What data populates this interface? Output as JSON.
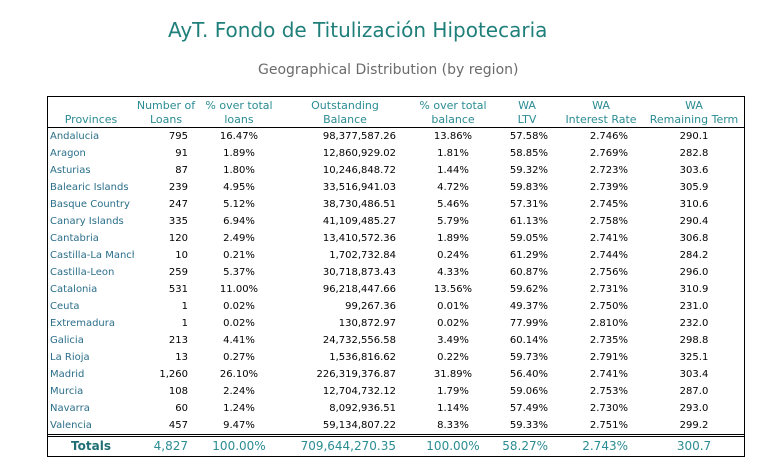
{
  "title": "AyT. Fondo de Titulización Hipotecaria",
  "subtitle": "Geographical Distribution (by region)",
  "headers": {
    "provinces": "Provinces",
    "loans": [
      "Number of",
      "Loans"
    ],
    "pct_loans": [
      "% over total",
      "loans"
    ],
    "balance": [
      "Outstanding",
      "Balance"
    ],
    "pct_balance": [
      "% over total",
      "balance"
    ],
    "ltv": [
      "WA",
      "LTV"
    ],
    "rate": [
      "WA",
      "Interest Rate"
    ],
    "term": [
      "WA",
      "Remaining Term"
    ]
  },
  "rows": [
    {
      "name": "Andalucia",
      "loans": "795",
      "pct_loans": "16.47%",
      "balance": "98,377,587.26",
      "pct_balance": "13.86%",
      "ltv": "57.58%",
      "rate": "2.746%",
      "term": "290.1"
    },
    {
      "name": "Aragon",
      "loans": "91",
      "pct_loans": "1.89%",
      "balance": "12,860,929.02",
      "pct_balance": "1.81%",
      "ltv": "58.85%",
      "rate": "2.769%",
      "term": "282.8"
    },
    {
      "name": "Asturias",
      "loans": "87",
      "pct_loans": "1.80%",
      "balance": "10,246,848.72",
      "pct_balance": "1.44%",
      "ltv": "59.32%",
      "rate": "2.723%",
      "term": "303.6"
    },
    {
      "name": "Balearic Islands",
      "loans": "239",
      "pct_loans": "4.95%",
      "balance": "33,516,941.03",
      "pct_balance": "4.72%",
      "ltv": "59.83%",
      "rate": "2.739%",
      "term": "305.9"
    },
    {
      "name": "Basque Country",
      "loans": "247",
      "pct_loans": "5.12%",
      "balance": "38,730,486.51",
      "pct_balance": "5.46%",
      "ltv": "57.31%",
      "rate": "2.745%",
      "term": "310.6"
    },
    {
      "name": "Canary Islands",
      "loans": "335",
      "pct_loans": "6.94%",
      "balance": "41,109,485.27",
      "pct_balance": "5.79%",
      "ltv": "61.13%",
      "rate": "2.758%",
      "term": "290.4"
    },
    {
      "name": "Cantabria",
      "loans": "120",
      "pct_loans": "2.49%",
      "balance": "13,410,572.36",
      "pct_balance": "1.89%",
      "ltv": "59.05%",
      "rate": "2.741%",
      "term": "306.8"
    },
    {
      "name": "Castilla-La Manch",
      "loans": "10",
      "pct_loans": "0.21%",
      "balance": "1,702,732.84",
      "pct_balance": "0.24%",
      "ltv": "61.29%",
      "rate": "2.744%",
      "term": "284.2"
    },
    {
      "name": "Castilla-Leon",
      "loans": "259",
      "pct_loans": "5.37%",
      "balance": "30,718,873.43",
      "pct_balance": "4.33%",
      "ltv": "60.87%",
      "rate": "2.756%",
      "term": "296.0"
    },
    {
      "name": "Catalonia",
      "loans": "531",
      "pct_loans": "11.00%",
      "balance": "96,218,447.66",
      "pct_balance": "13.56%",
      "ltv": "59.62%",
      "rate": "2.731%",
      "term": "310.9"
    },
    {
      "name": "Ceuta",
      "loans": "1",
      "pct_loans": "0.02%",
      "balance": "99,267.36",
      "pct_balance": "0.01%",
      "ltv": "49.37%",
      "rate": "2.750%",
      "term": "231.0"
    },
    {
      "name": "Extremadura",
      "loans": "1",
      "pct_loans": "0.02%",
      "balance": "130,872.97",
      "pct_balance": "0.02%",
      "ltv": "77.99%",
      "rate": "2.810%",
      "term": "232.0"
    },
    {
      "name": "Galicia",
      "loans": "213",
      "pct_loans": "4.41%",
      "balance": "24,732,556.58",
      "pct_balance": "3.49%",
      "ltv": "60.14%",
      "rate": "2.735%",
      "term": "298.8"
    },
    {
      "name": "La Rioja",
      "loans": "13",
      "pct_loans": "0.27%",
      "balance": "1,536,816.62",
      "pct_balance": "0.22%",
      "ltv": "59.73%",
      "rate": "2.791%",
      "term": "325.1"
    },
    {
      "name": "Madrid",
      "loans": "1,260",
      "pct_loans": "26.10%",
      "balance": "226,319,376.87",
      "pct_balance": "31.89%",
      "ltv": "56.40%",
      "rate": "2.741%",
      "term": "303.4"
    },
    {
      "name": "Murcia",
      "loans": "108",
      "pct_loans": "2.24%",
      "balance": "12,704,732.12",
      "pct_balance": "1.79%",
      "ltv": "59.06%",
      "rate": "2.753%",
      "term": "287.0"
    },
    {
      "name": "Navarra",
      "loans": "60",
      "pct_loans": "1.24%",
      "balance": "8,092,936.51",
      "pct_balance": "1.14%",
      "ltv": "57.49%",
      "rate": "2.730%",
      "term": "293.0"
    },
    {
      "name": "Valencia",
      "loans": "457",
      "pct_loans": "9.47%",
      "balance": "59,134,807.22",
      "pct_balance": "8.33%",
      "ltv": "59.33%",
      "rate": "2.751%",
      "term": "299.2"
    }
  ],
  "totals": {
    "name": "Totals",
    "loans": "4,827",
    "pct_loans": "100.00%",
    "balance": "709,644,270.35",
    "pct_balance": "100.00%",
    "ltv": "58.27%",
    "rate": "2.743%",
    "term": "300.7"
  }
}
